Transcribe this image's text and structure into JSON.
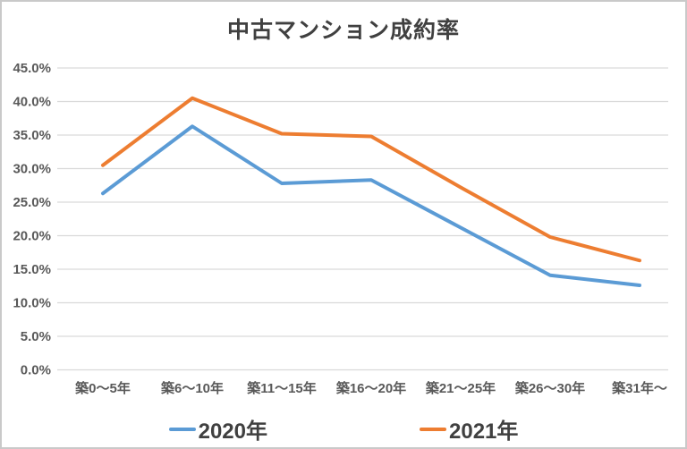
{
  "title": "中古マンション成約率",
  "colors": {
    "series_2020": "#5B9BD5",
    "series_2021": "#ED7D31",
    "gridline": "#D9D9D9",
    "axis_text": "#595959",
    "title_text": "#404040"
  },
  "chart_data": {
    "type": "line",
    "title": "中古マンション成約率",
    "categories": [
      "築0〜5年",
      "築6〜10年",
      "築11〜15年",
      "築16〜20年",
      "築21〜25年",
      "築26〜30年",
      "築31年〜"
    ],
    "series": [
      {
        "name": "2020年",
        "color": "#5B9BD5",
        "values": [
          26.3,
          36.3,
          27.8,
          28.3,
          21.2,
          14.1,
          12.6
        ]
      },
      {
        "name": "2021年",
        "color": "#ED7D31",
        "values": [
          30.5,
          40.5,
          35.2,
          34.8,
          27.2,
          19.8,
          16.3
        ]
      }
    ],
    "xlabel": "",
    "ylabel": "",
    "ylim": [
      0,
      45
    ],
    "ytick_step": 5,
    "ytick_labels": [
      "0.0%",
      "5.0%",
      "10.0%",
      "15.0%",
      "20.0%",
      "25.0%",
      "30.0%",
      "35.0%",
      "40.0%",
      "45.0%"
    ],
    "grid": true,
    "legend_position": "bottom",
    "legend_entries": [
      "2020年",
      "2021年"
    ]
  }
}
